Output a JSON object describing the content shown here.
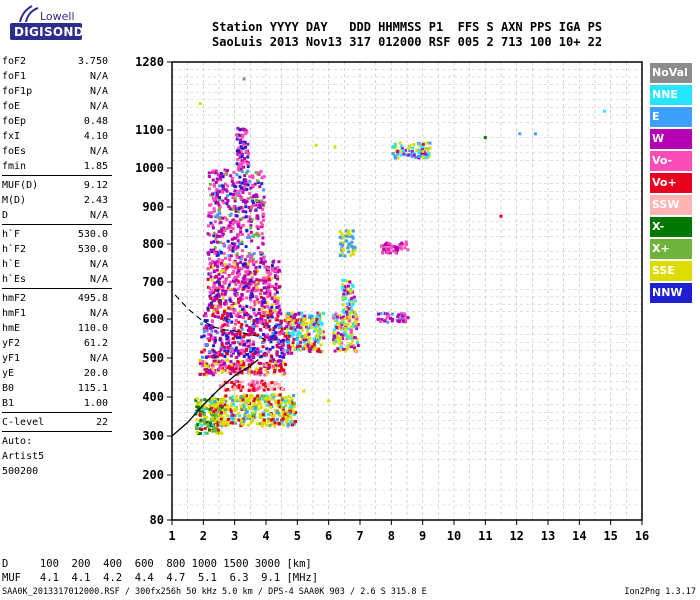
{
  "logo": {
    "line1": "Lowell",
    "line2": "DIGISONDE"
  },
  "header": {
    "line1": "Station YYYY DAY   DDD HHMMSS P1  FFS S AXN PPS IGA PS",
    "line2": "SaoLuis 2013 Nov13 317 012000 RSF 005 2 713 100 10+ 22"
  },
  "params": [
    {
      "type": "row",
      "name": "foF2",
      "value": "3.750"
    },
    {
      "type": "row",
      "name": "foF1",
      "value": "N/A"
    },
    {
      "type": "row",
      "name": "foF1p",
      "value": "N/A"
    },
    {
      "type": "row",
      "name": "foE",
      "value": "N/A"
    },
    {
      "type": "row",
      "name": "foEp",
      "value": "0.48"
    },
    {
      "type": "row",
      "name": "fxI",
      "value": "4.10"
    },
    {
      "type": "row",
      "name": "foEs",
      "value": "N/A"
    },
    {
      "type": "row",
      "name": "fmin",
      "value": "1.85"
    },
    {
      "type": "sep"
    },
    {
      "type": "row",
      "name": "MUF(D)",
      "value": "9.12"
    },
    {
      "type": "row",
      "name": "M(D)",
      "value": "2.43"
    },
    {
      "type": "row",
      "name": "D",
      "value": "N/A"
    },
    {
      "type": "sep"
    },
    {
      "type": "row",
      "name": "h`F",
      "value": "530.0"
    },
    {
      "type": "row",
      "name": "h`F2",
      "value": "530.0"
    },
    {
      "type": "row",
      "name": "h`E",
      "value": "N/A"
    },
    {
      "type": "row",
      "name": "h`Es",
      "value": "N/A"
    },
    {
      "type": "sep"
    },
    {
      "type": "row",
      "name": "hmF2",
      "value": "495.8"
    },
    {
      "type": "row",
      "name": "hmF1",
      "value": "N/A"
    },
    {
      "type": "row",
      "name": "hmE",
      "value": "110.0"
    },
    {
      "type": "row",
      "name": "yF2",
      "value": "61.2"
    },
    {
      "type": "row",
      "name": "yF1",
      "value": "N/A"
    },
    {
      "type": "row",
      "name": "yE",
      "value": "20.0"
    },
    {
      "type": "row",
      "name": "B0",
      "value": "115.1"
    },
    {
      "type": "row",
      "name": "B1",
      "value": "1.00"
    },
    {
      "type": "sep"
    },
    {
      "type": "row",
      "name": "C-level",
      "value": "22"
    },
    {
      "type": "sep"
    },
    {
      "type": "text",
      "text": "Auto:"
    },
    {
      "type": "text",
      "text": "Artist5"
    },
    {
      "type": "text",
      "text": "500200"
    }
  ],
  "footer": {
    "d_line": "D     100  200  400  600  800 1000 1500 3000 [km]",
    "muf_line": "MUF   4.1  4.1  4.2  4.4  4.7  5.1  6.3  9.1 [MHz]",
    "file_line": "SAA0K_2013317012000.RSF / 300fx256h 50 kHz 5.0 km / DPS-4 SAA0K 903 / 2.6 S 315.8 E",
    "version": "Ion2Png 1.3.17"
  },
  "legend": [
    {
      "label": "NoVal",
      "color": "#8c8c8c"
    },
    {
      "label": "NNE",
      "color": "#26e6ff"
    },
    {
      "label": "E",
      "color": "#3ca0ff"
    },
    {
      "label": "W",
      "color": "#b400b4"
    },
    {
      "label": "Vo-",
      "color": "#ff4db8"
    },
    {
      "label": "Vo+",
      "color": "#e6001e"
    },
    {
      "label": "SSW",
      "color": "#ffb4b4"
    },
    {
      "label": "X-",
      "color": "#007800"
    },
    {
      "label": "X+",
      "color": "#6eb43c"
    },
    {
      "label": "SSE",
      "color": "#dcdc00"
    },
    {
      "label": "NNW",
      "color": "#1e1ed2"
    }
  ],
  "chart_data": {
    "type": "scatter",
    "x_ticks": [
      "1",
      "2",
      "3",
      "4",
      "5",
      "6",
      "7",
      "8",
      "9",
      "10",
      "11",
      "12",
      "13",
      "14",
      "15",
      "16"
    ],
    "y_ticks": [
      "80",
      "200",
      "300",
      "400",
      "500",
      "600",
      "700",
      "800",
      "900",
      "1000",
      "1100",
      "1280"
    ],
    "xlim": [
      1,
      16
    ],
    "ylim": [
      80,
      1280
    ],
    "grid": true,
    "legend_position": "right",
    "clusters": [
      {
        "x": [
          1.7,
          2.6
        ],
        "y": [
          310,
          400
        ],
        "weights": {
          "X-": 3,
          "X+": 3,
          "SSE": 2,
          "Vo+": 1,
          "NNE": 1
        }
      },
      {
        "x": [
          2.2,
          4.9
        ],
        "y": [
          330,
          410
        ],
        "weights": {
          "SSE": 5,
          "Vo+": 2,
          "NNE": 1,
          "E": 1,
          "X+": 1
        }
      },
      {
        "x": [
          2.5,
          4.5
        ],
        "y": [
          420,
          445
        ],
        "weights": {
          "Vo+": 3,
          "SSW": 3,
          "Vo-": 2
        }
      },
      {
        "x": [
          1.8,
          4.6
        ],
        "y": [
          460,
          500
        ],
        "weights": {
          "W": 3,
          "Vo-": 2,
          "Vo+": 2,
          "SSE": 2
        }
      },
      {
        "x": [
          1.9,
          4.8
        ],
        "y": [
          505,
          620
        ],
        "weights": {
          "Vo+": 3,
          "W": 3,
          "NNW": 2,
          "Vo-": 2,
          "E": 1
        }
      },
      {
        "x": [
          2.1,
          4.4
        ],
        "y": [
          620,
          760
        ],
        "weights": {
          "W": 3,
          "Vo-": 3,
          "Vo+": 1,
          "NNW": 1,
          "SSE": 1
        }
      },
      {
        "x": [
          2.1,
          3.9
        ],
        "y": [
          760,
          1000
        ],
        "weights": {
          "W": 3,
          "Vo-": 3,
          "NNW": 1,
          "E": 1,
          "X+": 1
        }
      },
      {
        "x": [
          3.0,
          3.4
        ],
        "y": [
          1000,
          1110
        ],
        "weights": {
          "Vo-": 2,
          "W": 2,
          "NNW": 1
        }
      },
      {
        "x": [
          4.6,
          5.8
        ],
        "y": [
          520,
          620
        ],
        "weights": {
          "SSE": 3,
          "NNE": 2,
          "W": 2,
          "Vo+": 1,
          "E": 1
        }
      },
      {
        "x": [
          6.1,
          6.9
        ],
        "y": [
          520,
          620
        ],
        "weights": {
          "SSE": 3,
          "NNE": 2,
          "W": 2,
          "Vo-": 1
        }
      },
      {
        "x": [
          7.5,
          8.5
        ],
        "y": [
          595,
          620
        ],
        "weights": {
          "W": 2,
          "Vo-": 2,
          "E": 1
        }
      },
      {
        "x": [
          8.0,
          9.2
        ],
        "y": [
          1030,
          1070
        ],
        "weights": {
          "SSE": 3,
          "NNE": 2,
          "W": 2,
          "E": 2
        }
      },
      {
        "x": [
          7.6,
          8.5
        ],
        "y": [
          780,
          810
        ],
        "weights": {
          "W": 2,
          "Vo-": 2
        }
      },
      {
        "x": [
          6.3,
          6.8
        ],
        "y": [
          770,
          840
        ],
        "weights": {
          "SSE": 2,
          "E": 2
        }
      },
      {
        "x": [
          6.4,
          6.8
        ],
        "y": [
          620,
          710
        ],
        "weights": {
          "NNE": 1,
          "SSE": 1,
          "W": 1
        }
      }
    ],
    "isolated_points": [
      {
        "x": 1.9,
        "y": 1170,
        "legend": "SSE"
      },
      {
        "x": 3.3,
        "y": 1235,
        "legend": "NoVal"
      },
      {
        "x": 5.6,
        "y": 1060,
        "legend": "SSE"
      },
      {
        "x": 6.2,
        "y": 1055,
        "legend": "SSE"
      },
      {
        "x": 11.0,
        "y": 1080,
        "legend": "X-"
      },
      {
        "x": 11.5,
        "y": 875,
        "legend": "Vo+"
      },
      {
        "x": 12.1,
        "y": 1090,
        "legend": "E"
      },
      {
        "x": 12.6,
        "y": 1090,
        "legend": "E"
      },
      {
        "x": 14.8,
        "y": 1150,
        "legend": "NNE"
      },
      {
        "x": 4.9,
        "y": 375,
        "legend": "SSE"
      },
      {
        "x": 6.0,
        "y": 390,
        "legend": "SSE"
      },
      {
        "x": 5.2,
        "y": 415,
        "legend": "SSE"
      }
    ],
    "profile_curve": [
      [
        1.0,
        300
      ],
      [
        1.5,
        335
      ],
      [
        2.0,
        380
      ],
      [
        2.5,
        420
      ],
      [
        3.0,
        455
      ],
      [
        3.5,
        480
      ],
      [
        3.75,
        495.8
      ]
    ],
    "dashed_trace": [
      [
        1.1,
        665
      ],
      [
        1.5,
        628
      ],
      [
        1.9,
        600
      ],
      [
        2.3,
        580
      ],
      [
        2.7,
        572
      ],
      [
        3.1,
        568
      ],
      [
        3.5,
        560
      ],
      [
        3.8,
        555
      ],
      [
        4.0,
        545
      ]
    ]
  }
}
